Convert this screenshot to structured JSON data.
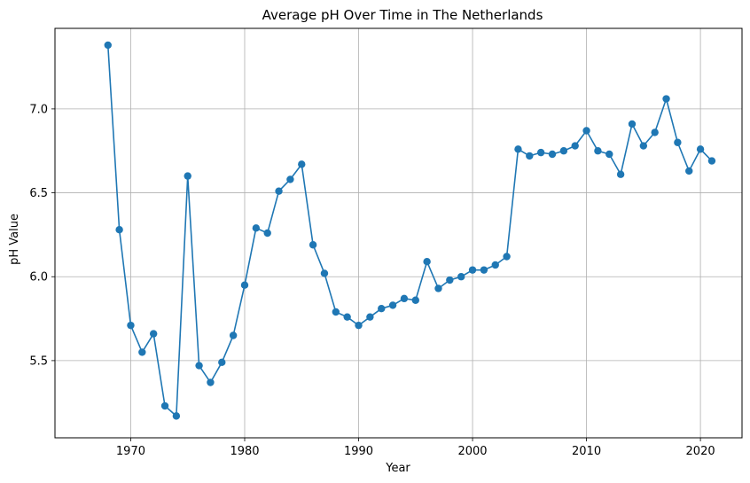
{
  "chart_data": {
    "type": "line",
    "title": "Average pH Over Time in The Netherlands",
    "xlabel": "Year",
    "ylabel": "pH Value",
    "xlim": [
      1963.35,
      2023.65
    ],
    "ylim": [
      5.04,
      7.48
    ],
    "xticks": [
      1970,
      1980,
      1990,
      2000,
      2010,
      2020
    ],
    "xtick_labels": [
      "1970",
      "1980",
      "1990",
      "2000",
      "2010",
      "2020"
    ],
    "yticks": [
      5.5,
      6.0,
      6.5,
      7.0
    ],
    "ytick_labels": [
      "5.5",
      "6.0",
      "6.5",
      "7.0"
    ],
    "grid": true,
    "line_color": "#1f77b4",
    "marker": "circle",
    "x": [
      1968,
      1969,
      1970,
      1971,
      1972,
      1973,
      1974,
      1975,
      1976,
      1977,
      1978,
      1979,
      1980,
      1981,
      1982,
      1983,
      1984,
      1985,
      1986,
      1987,
      1988,
      1989,
      1990,
      1991,
      1992,
      1993,
      1994,
      1995,
      1996,
      1997,
      1998,
      1999,
      2000,
      2001,
      2002,
      2003,
      2004,
      2005,
      2006,
      2007,
      2008,
      2009,
      2010,
      2011,
      2012,
      2013,
      2014,
      2015,
      2016,
      2017,
      2018,
      2019,
      2020,
      2021
    ],
    "y": [
      7.38,
      6.28,
      5.71,
      5.55,
      5.66,
      5.23,
      5.17,
      6.6,
      5.47,
      5.37,
      5.49,
      5.65,
      5.95,
      6.29,
      6.26,
      6.51,
      6.58,
      6.67,
      6.19,
      6.02,
      5.79,
      5.76,
      5.71,
      5.76,
      5.81,
      5.83,
      5.87,
      5.86,
      6.09,
      5.93,
      5.98,
      6.0,
      6.04,
      6.04,
      6.07,
      6.12,
      6.76,
      6.72,
      6.74,
      6.73,
      6.75,
      6.78,
      6.87,
      6.75,
      6.73,
      6.61,
      6.91,
      6.78,
      6.86,
      7.06,
      6.8,
      6.63,
      6.76,
      6.69
    ]
  }
}
